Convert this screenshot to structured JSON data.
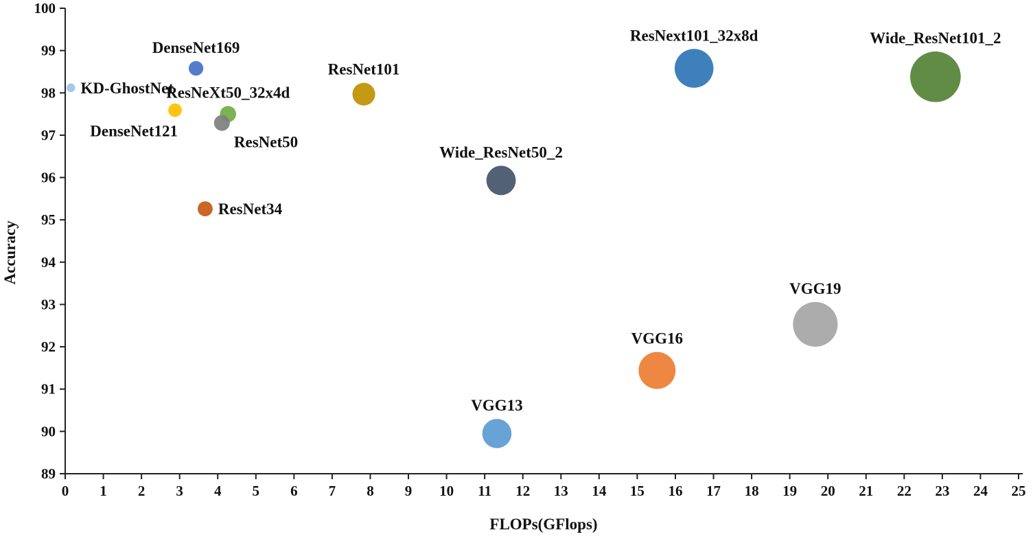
{
  "chart_data": {
    "type": "scatter",
    "title": "",
    "xlabel": "FLOPs(GFlops)",
    "ylabel": "Accuracy",
    "xlim": [
      0,
      25
    ],
    "ylim": [
      89,
      100
    ],
    "xticks": [
      0,
      1,
      2,
      3,
      4,
      5,
      6,
      7,
      8,
      9,
      10,
      11,
      12,
      13,
      14,
      15,
      16,
      17,
      18,
      19,
      20,
      21,
      22,
      23,
      24,
      25
    ],
    "yticks": [
      89,
      90,
      91,
      92,
      93,
      94,
      95,
      96,
      97,
      98,
      99,
      100
    ],
    "grid": false,
    "points": [
      {
        "name": "KD-GhostNet",
        "x": 0.15,
        "y": 98.12,
        "color": "#9dc3e6",
        "label_pos": "right"
      },
      {
        "name": "DenseNet169",
        "x": 3.43,
        "y": 98.58,
        "color": "#4472c4",
        "label_pos": "top"
      },
      {
        "name": "DenseNet121",
        "x": 2.88,
        "y": 97.59,
        "color": "#ffc000",
        "label_pos": "bottom-left"
      },
      {
        "name": "ResNeXt50_32x4d",
        "x": 4.27,
        "y": 97.5,
        "color": "#70ad47",
        "label_pos": "top"
      },
      {
        "name": "ResNet50",
        "x": 4.11,
        "y": 97.29,
        "color": "#7f7f7f",
        "label_pos": "bottom-right"
      },
      {
        "name": "ResNet101",
        "x": 7.83,
        "y": 97.97,
        "color": "#bf9000",
        "label_pos": "top"
      },
      {
        "name": "ResNet34",
        "x": 3.67,
        "y": 95.26,
        "color": "#c55a11",
        "label_pos": "right"
      },
      {
        "name": "Wide_ResNet50_2",
        "x": 11.43,
        "y": 95.93,
        "color": "#44546a",
        "label_pos": "top"
      },
      {
        "name": "ResNext101_32x8d",
        "x": 16.49,
        "y": 98.58,
        "color": "#2e75b6",
        "label_pos": "top"
      },
      {
        "name": "Wide_ResNet101_2",
        "x": 22.82,
        "y": 98.38,
        "color": "#548235",
        "label_pos": "top"
      },
      {
        "name": "VGG13",
        "x": 11.32,
        "y": 89.95,
        "color": "#5b9bd5",
        "label_pos": "top"
      },
      {
        "name": "VGG16",
        "x": 15.52,
        "y": 91.44,
        "color": "#ed7d31",
        "label_pos": "top"
      },
      {
        "name": "VGG19",
        "x": 19.67,
        "y": 92.53,
        "color": "#a5a5a5",
        "label_pos": "top"
      }
    ]
  }
}
